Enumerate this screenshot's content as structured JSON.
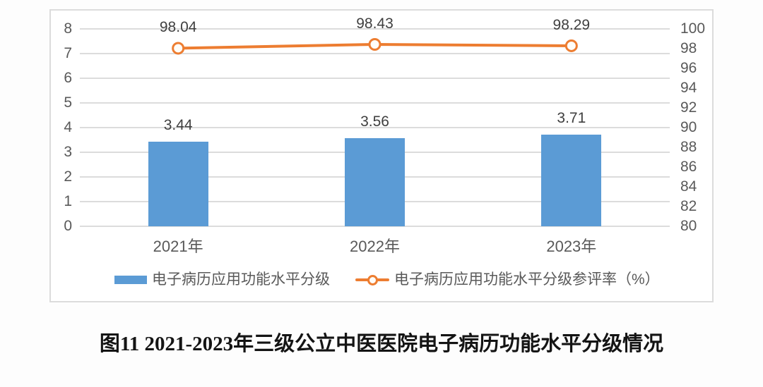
{
  "caption": "图11 2021-2023年三级公立中医医院电子病历功能水平分级情况",
  "colors": {
    "bar": "#5B9BD5",
    "line": "#ED7D31",
    "grid": "#dcdcdc",
    "axis_text": "#595959",
    "data_label_text": "#3f3f3f"
  },
  "chart_data": {
    "type": "bar",
    "subtype": "bar+line dual-axis combo",
    "categories": [
      "2021年",
      "2022年",
      "2023年"
    ],
    "series": [
      {
        "name": "电子病历应用功能水平分级",
        "type": "bar",
        "axis": "left",
        "values": [
          3.44,
          3.56,
          3.71
        ],
        "labels": [
          "3.44",
          "3.56",
          "3.71"
        ],
        "color": "#5B9BD5"
      },
      {
        "name": "电子病历应用功能水平分级参评率（%）",
        "type": "line",
        "axis": "right",
        "values": [
          98.04,
          98.43,
          98.29
        ],
        "labels": [
          "98.04",
          "98.43",
          "98.29"
        ],
        "color": "#ED7D31",
        "marker": "open-circle"
      }
    ],
    "left_axis": {
      "min": 0,
      "max": 8,
      "step": 1,
      "ticks": [
        8,
        7,
        6,
        5,
        4,
        3,
        2,
        1,
        0
      ]
    },
    "right_axis": {
      "min": 80,
      "max": 100,
      "step": 2,
      "ticks": [
        100,
        98,
        96,
        94,
        92,
        90,
        88,
        86,
        84,
        82,
        80
      ]
    },
    "grid": "horizontal",
    "legend_position": "bottom",
    "title": "",
    "xlabel": "",
    "ylabel": ""
  }
}
